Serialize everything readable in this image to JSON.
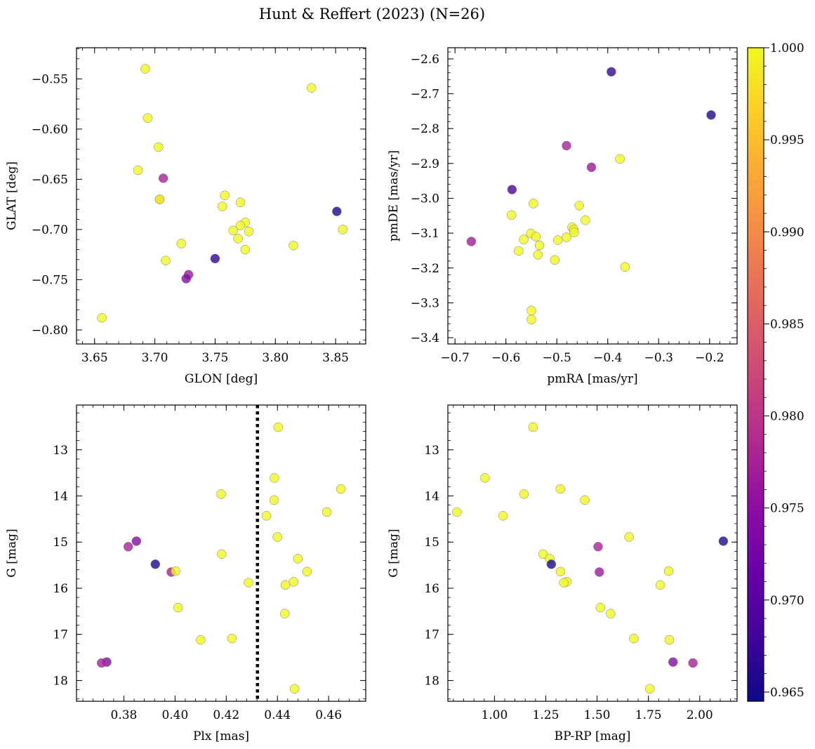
{
  "chart_data": {
    "title": "Hunt & Reffert (2023) (N=26)",
    "colorbar": {
      "cmap": "plasma",
      "range": [
        0.9645,
        1.0
      ],
      "ticks": [
        0.965,
        0.97,
        0.975,
        0.98,
        0.985,
        0.99,
        0.995,
        1.0
      ],
      "tick_labels": [
        "0.965",
        "0.970",
        "0.975",
        "0.980",
        "0.985",
        "0.990",
        "0.995",
        "1.000"
      ]
    },
    "panels": [
      {
        "type": "scatter",
        "xlabel": "GLON [deg]",
        "ylabel": "GLAT [deg]",
        "xlim": [
          3.635,
          3.875
        ],
        "ylim": [
          -0.814,
          -0.519
        ],
        "xticks": [
          3.65,
          3.7,
          3.75,
          3.8,
          3.85
        ],
        "xtick_labels": [
          "3.65",
          "3.70",
          "3.75",
          "3.80",
          "3.85"
        ],
        "yticks": [
          -0.55,
          -0.6,
          -0.65,
          -0.7,
          -0.75,
          -0.8
        ],
        "ytick_labels": [
          "−0.55",
          "−0.60",
          "−0.65",
          "−0.70",
          "−0.75",
          "−0.80"
        ],
        "x": [
          3.692,
          3.83,
          3.694,
          3.703,
          3.686,
          3.707,
          3.704,
          3.758,
          3.771,
          3.756,
          3.851,
          3.775,
          3.765,
          3.771,
          3.856,
          3.778,
          3.769,
          3.722,
          3.815,
          3.775,
          3.709,
          3.75,
          3.728,
          3.726,
          3.656,
          3.704
        ],
        "y": [
          -0.54,
          -0.559,
          -0.589,
          -0.618,
          -0.641,
          -0.649,
          -0.67,
          -0.666,
          -0.673,
          -0.677,
          -0.682,
          -0.693,
          -0.701,
          -0.696,
          -0.7,
          -0.702,
          -0.709,
          -0.714,
          -0.716,
          -0.72,
          -0.731,
          -0.729,
          -0.745,
          -0.749,
          -0.788,
          -0.67
        ]
      },
      {
        "type": "scatter",
        "xlabel": "pmRA [mas/yr]",
        "ylabel": "pmDE [mas/yr]",
        "xlim": [
          -0.714,
          -0.146
        ],
        "ylim": [
          -3.418,
          -2.568
        ],
        "xticks": [
          -0.7,
          -0.6,
          -0.5,
          -0.4,
          -0.3,
          -0.2
        ],
        "xtick_labels": [
          "−0.7",
          "−0.6",
          "−0.5",
          "−0.4",
          "−0.3",
          "−0.2"
        ],
        "yticks": [
          -2.6,
          -2.7,
          -2.8,
          -2.9,
          -3.0,
          -3.1,
          -3.2,
          -3.3,
          -3.4
        ],
        "ytick_labels": [
          "−2.6",
          "−2.7",
          "−2.8",
          "−2.9",
          "−3.0",
          "−3.1",
          "−3.2",
          "−3.3",
          "−3.4"
        ],
        "x": [
          -0.393,
          -0.197,
          -0.481,
          -0.376,
          -0.432,
          -0.588,
          -0.546,
          -0.589,
          -0.456,
          -0.444,
          -0.47,
          -0.467,
          -0.466,
          -0.481,
          -0.498,
          -0.534,
          -0.551,
          -0.541,
          -0.565,
          -0.668,
          -0.575,
          -0.537,
          -0.504,
          -0.366,
          -0.55,
          -0.55
        ],
        "y": [
          -2.637,
          -2.761,
          -2.849,
          -2.887,
          -2.911,
          -2.975,
          -3.015,
          -3.048,
          -3.021,
          -3.063,
          -3.083,
          -3.09,
          -3.098,
          -3.112,
          -3.12,
          -3.135,
          -3.101,
          -3.11,
          -3.118,
          -3.124,
          -3.151,
          -3.162,
          -3.177,
          -3.197,
          -3.322,
          -3.348
        ]
      },
      {
        "type": "scatter",
        "xlabel": "Plx [mas]",
        "ylabel": "G [mag]",
        "xlim": [
          0.3615,
          0.4745
        ],
        "ylim": [
          18.45,
          12.03
        ],
        "xticks": [
          0.38,
          0.4,
          0.42,
          0.44,
          0.46
        ],
        "xtick_labels": [
          "0.38",
          "0.40",
          "0.42",
          "0.44",
          "0.46"
        ],
        "yticks": [
          13,
          14,
          15,
          16,
          17,
          18
        ],
        "ytick_labels": [
          "13",
          "14",
          "15",
          "16",
          "17",
          "18"
        ],
        "vline": {
          "x": 0.4322,
          "style": "dotted"
        },
        "x": [
          0.4403,
          0.4388,
          0.4648,
          0.418,
          0.4387,
          0.4357,
          0.4593,
          0.44,
          0.3849,
          0.3817,
          0.4182,
          0.448,
          0.3923,
          0.4516,
          0.3985,
          0.4002,
          0.4463,
          0.4431,
          0.4287,
          0.4012,
          0.4429,
          0.41,
          0.4222,
          0.3733,
          0.3713,
          0.4467
        ],
        "y": [
          12.51,
          13.61,
          13.85,
          13.96,
          14.09,
          14.43,
          14.35,
          14.89,
          14.98,
          15.1,
          15.26,
          15.36,
          15.48,
          15.64,
          15.65,
          15.63,
          15.86,
          15.93,
          15.88,
          16.42,
          16.55,
          17.12,
          17.09,
          17.6,
          17.62,
          18.18
        ]
      },
      {
        "type": "scatter",
        "xlabel": "BP-RP [mag]",
        "ylabel": "G [mag]",
        "xlim": [
          0.773,
          2.182
        ],
        "ylim": [
          18.45,
          12.03
        ],
        "xticks": [
          1.0,
          1.25,
          1.5,
          1.75,
          2.0
        ],
        "xtick_labels": [
          "1.00",
          "1.25",
          "1.50",
          "1.75",
          "2.00"
        ],
        "yticks": [
          13,
          14,
          15,
          16,
          17,
          18
        ],
        "ytick_labels": [
          "13",
          "14",
          "15",
          "16",
          "17",
          "18"
        ],
        "x": [
          1.188,
          0.954,
          1.321,
          1.144,
          1.44,
          0.817,
          1.042,
          1.656,
          2.115,
          1.505,
          1.237,
          1.269,
          1.277,
          1.322,
          1.511,
          1.849,
          1.808,
          1.353,
          1.338,
          1.516,
          1.566,
          1.679,
          1.852,
          1.87,
          1.967,
          1.757
        ],
        "y": [
          12.51,
          13.61,
          13.85,
          13.96,
          14.09,
          14.35,
          14.43,
          14.89,
          14.98,
          15.1,
          15.26,
          15.36,
          15.48,
          15.64,
          15.65,
          15.63,
          15.93,
          15.86,
          15.88,
          16.42,
          16.55,
          17.09,
          17.12,
          17.6,
          17.62,
          18.18
        ]
      }
    ],
    "point_colors": [
      1.0,
      1.0,
      1.0,
      1.0,
      1.0,
      0.9775,
      0.988,
      1.0,
      1.0,
      1.0,
      0.9655,
      1.0,
      1.0,
      1.0,
      1.0,
      1.0,
      1.0,
      1.0,
      1.0,
      1.0,
      1.0,
      0.967,
      0.9765,
      0.974,
      1.0,
      1.0
    ],
    "panel_color_order": [
      [
        0,
        1,
        2,
        3,
        4,
        5,
        25,
        6,
        7,
        8,
        9,
        10,
        11,
        12,
        13,
        14,
        15,
        16,
        17,
        18,
        19,
        20,
        21,
        22,
        23,
        24
      ],
      [
        21,
        10,
        6,
        0,
        22,
        23,
        1,
        2,
        3,
        4,
        7,
        8,
        9,
        11,
        12,
        13,
        14,
        15,
        16,
        17,
        5,
        18,
        19,
        20,
        24,
        25
      ],
      [
        0,
        1,
        2,
        3,
        4,
        5,
        6,
        7,
        22,
        23,
        8,
        9,
        21,
        10,
        6,
        11,
        12,
        13,
        14,
        15,
        16,
        17,
        18,
        5,
        23,
        19
      ],
      [
        0,
        1,
        2,
        3,
        4,
        5,
        6,
        7,
        21,
        22,
        8,
        9,
        21,
        10,
        6,
        11,
        12,
        13,
        14,
        15,
        16,
        17,
        18,
        23,
        5,
        19
      ]
    ],
    "point_colors_by_panel": [
      [
        1,
        1,
        1,
        1,
        1,
        0.9775,
        0.988,
        1,
        1,
        1,
        0.9655,
        1,
        1,
        1,
        1,
        1,
        1,
        1,
        1,
        1,
        1,
        0.967,
        0.9765,
        0.974,
        1,
        1
      ],
      [
        0.967,
        0.9655,
        0.9775,
        1,
        0.9765,
        0.969,
        1,
        1,
        1,
        1,
        1,
        1,
        1,
        1,
        1,
        1,
        1,
        1,
        1,
        0.977,
        1,
        1,
        1,
        1,
        1,
        1
      ],
      [
        1,
        1,
        1,
        1,
        1,
        1,
        1,
        1,
        0.974,
        0.9775,
        1,
        1,
        0.9655,
        1,
        0.9775,
        1,
        1,
        1,
        1,
        1,
        1,
        1,
        1,
        0.974,
        0.9775,
        1
      ],
      [
        1,
        1,
        1,
        1,
        1,
        1,
        1,
        1,
        0.9655,
        0.9775,
        1,
        1,
        0.9655,
        1,
        0.9765,
        1,
        1,
        1,
        1,
        1,
        1,
        1,
        1,
        0.974,
        0.9775,
        1
      ]
    ]
  }
}
